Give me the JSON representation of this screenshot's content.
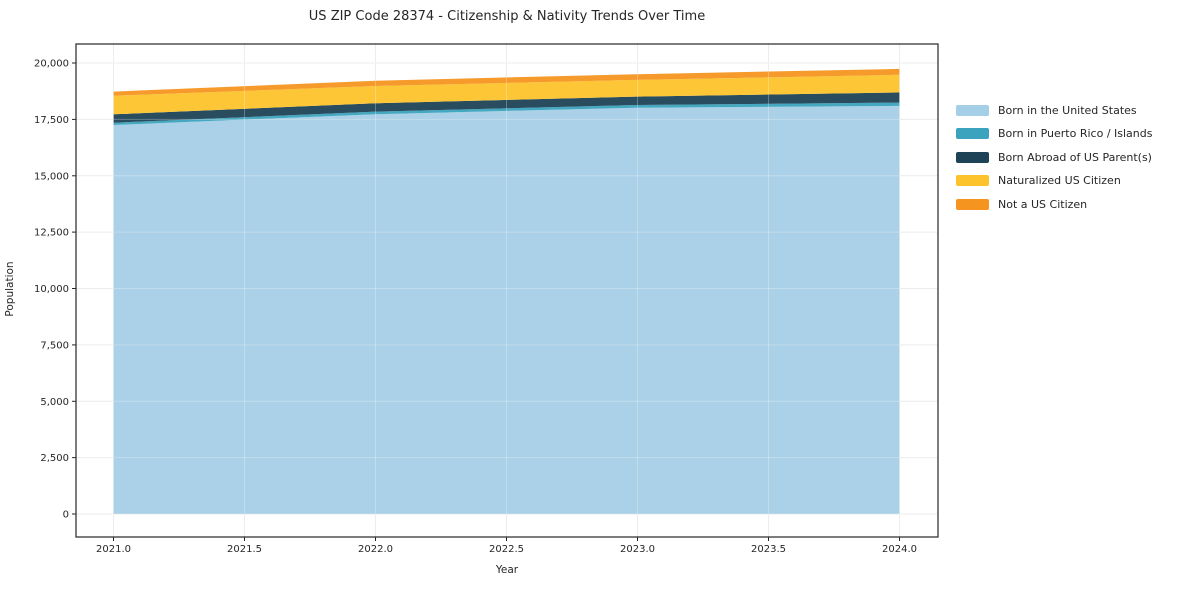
{
  "chart_data": {
    "type": "area",
    "stacked": true,
    "title": "US ZIP Code 28374 - Citizenship & Nativity Trends Over Time",
    "xlabel": "Year",
    "ylabel": "Population",
    "x": [
      2021,
      2022,
      2023,
      2024
    ],
    "series": [
      {
        "name": "Born in the United States",
        "color": "#A5CFE6",
        "values": [
          17250,
          17730,
          18020,
          18100
        ]
      },
      {
        "name": "Born in Puerto Rico / Islands",
        "color": "#3BA3BE",
        "values": [
          105,
          115,
          120,
          145
        ]
      },
      {
        "name": "Born Abroad of US Parent(s)",
        "color": "#1E4356",
        "values": [
          370,
          370,
          370,
          445
        ]
      },
      {
        "name": "Naturalized US Citizen",
        "color": "#FCC32C",
        "values": [
          825,
          765,
          740,
          785
        ]
      },
      {
        "name": "Not a US Citizen",
        "color": "#F59520",
        "values": [
          180,
          235,
          255,
          265
        ]
      }
    ],
    "totals_by_year": [
      18730,
      19215,
      19505,
      19740
    ],
    "x_ticks": [
      "2021.0",
      "2021.5",
      "2022.0",
      "2022.5",
      "2023.0",
      "2023.5",
      "2024.0"
    ],
    "x_tick_values": [
      2021,
      2021.5,
      2022,
      2022.5,
      2023,
      2023.5,
      2024
    ],
    "y_ticks": [
      "0",
      "2,500",
      "5,000",
      "7,500",
      "10,000",
      "12,500",
      "15,000",
      "17,500",
      "20,000"
    ],
    "y_tick_values": [
      0,
      2500,
      5000,
      7500,
      10000,
      12500,
      15000,
      17500,
      20000
    ],
    "xlim": [
      2020.857,
      2024.147
    ],
    "ylim": [
      -1020,
      20843
    ],
    "grid": true,
    "legend_position": "right",
    "grid_color": "#e7e7e7",
    "frame_color": "#262626",
    "text_color": "#262626"
  }
}
